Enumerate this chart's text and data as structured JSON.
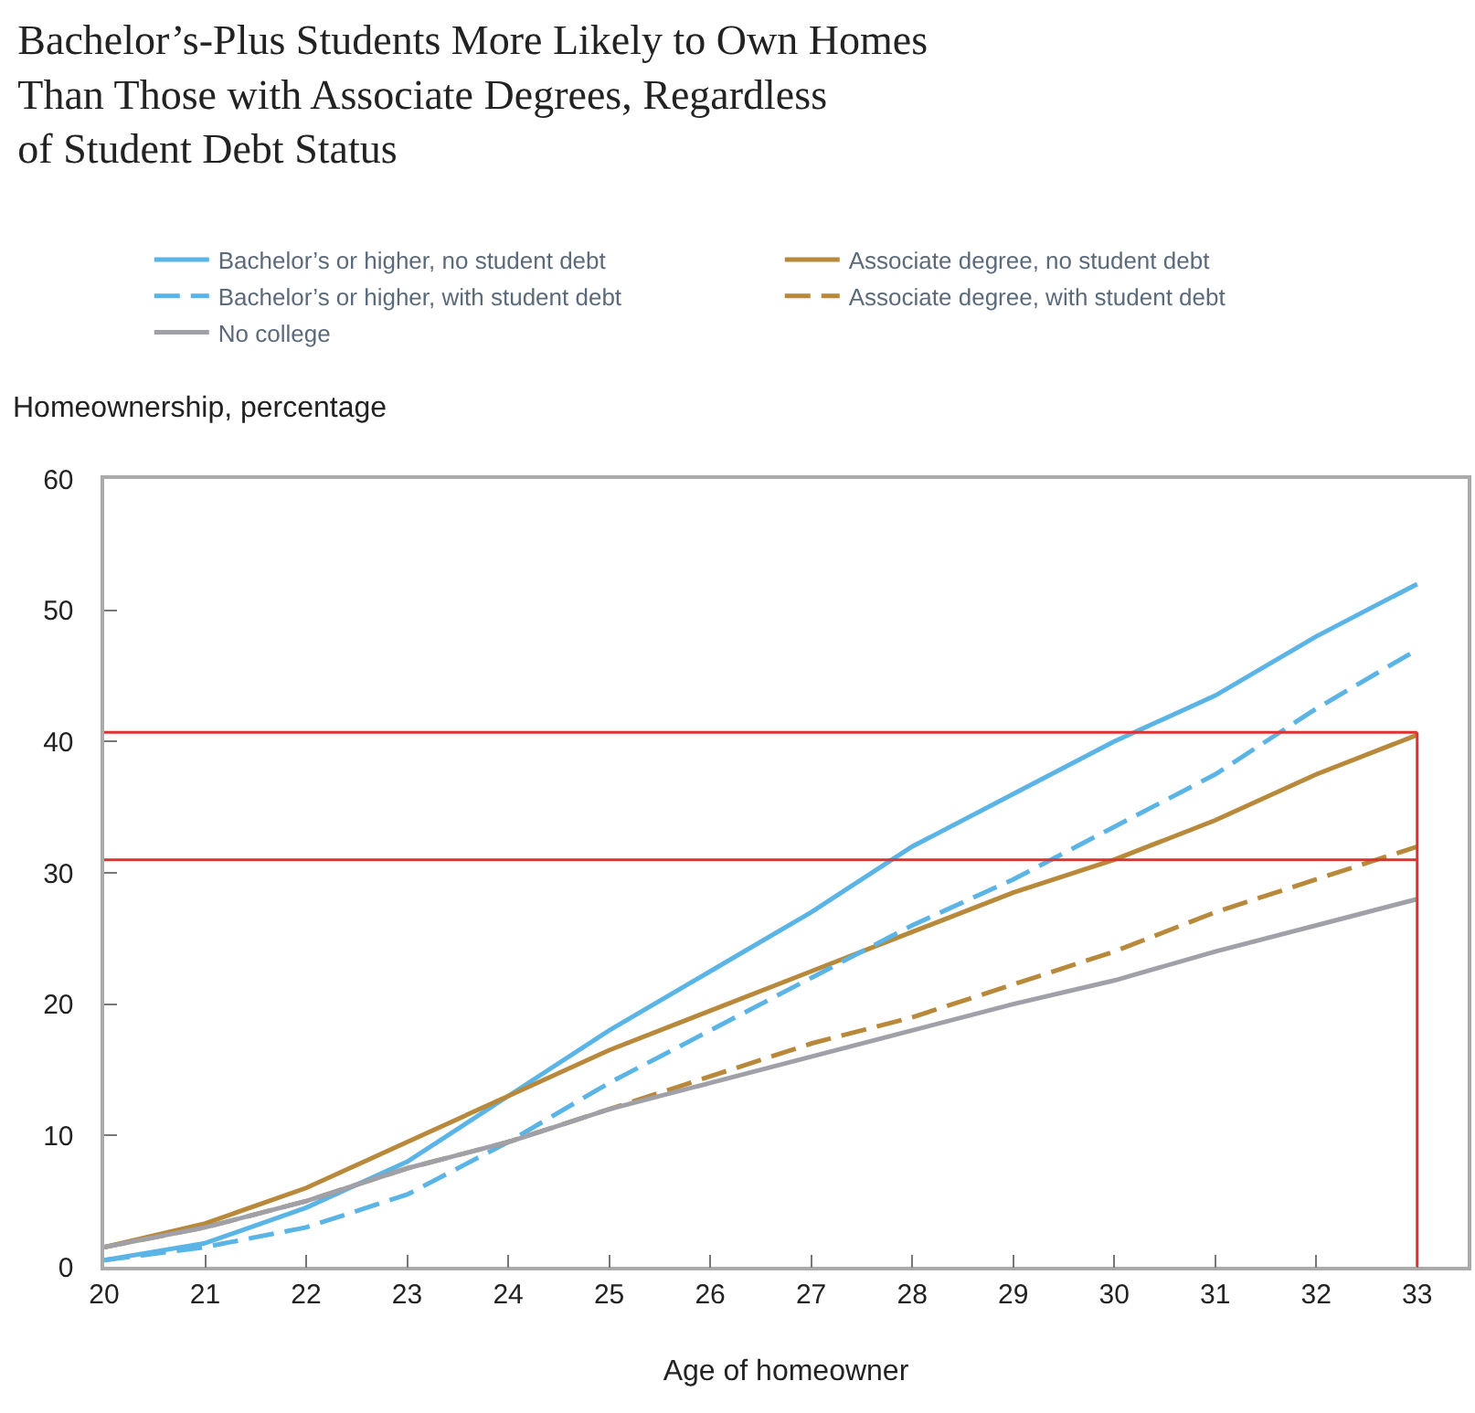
{
  "chart_data": {
    "type": "line",
    "title": "Bachelor’s-Plus Students More Likely to Own Homes\nThan Those with Associate Degrees, Regardless\nof Student Debt Status",
    "xlabel": "Age of homeowner",
    "ylabel": "Homeownership, percentage",
    "x": [
      20,
      21,
      22,
      23,
      24,
      25,
      26,
      27,
      28,
      29,
      30,
      31,
      32,
      33
    ],
    "series": [
      {
        "name": "Bachelor’s or higher, no student debt",
        "color": "#5ab4e5",
        "line_style": "solid",
        "values": [
          0.5,
          1.8,
          4.5,
          8,
          13,
          18,
          22.5,
          27,
          32,
          36,
          40,
          43.5,
          48,
          52
        ]
      },
      {
        "name": "Associate degree, no student debt",
        "color": "#b8893a",
        "line_style": "solid",
        "values": [
          1.5,
          3.3,
          6,
          9.5,
          13,
          16.5,
          19.5,
          22.5,
          25.5,
          28.5,
          31,
          34,
          37.5,
          40.5
        ]
      },
      {
        "name": "Bachelor’s or higher, with student debt",
        "color": "#5ab4e5",
        "line_style": "dashed",
        "values": [
          0.5,
          1.5,
          3,
          5.5,
          9.5,
          14,
          18,
          22,
          26,
          29.5,
          33.5,
          37.5,
          42.5,
          47
        ]
      },
      {
        "name": "Associate degree, with student debt",
        "color": "#b8893a",
        "line_style": "dashed",
        "values": [
          1.5,
          3,
          5,
          7.5,
          9.5,
          12,
          14.5,
          17,
          19,
          21.5,
          24,
          27,
          29.5,
          32
        ]
      },
      {
        "name": "No college",
        "color": "#a0a0a8",
        "line_style": "solid",
        "values": [
          1.5,
          3,
          5,
          7.5,
          9.5,
          12,
          14,
          16,
          18,
          20,
          21.8,
          24,
          26,
          28
        ]
      }
    ],
    "ref_lines": [
      {
        "axis": "y",
        "value": 40.7,
        "color": "#e03030"
      },
      {
        "axis": "y",
        "value": 31,
        "color": "#e03030"
      },
      {
        "axis": "x",
        "value": 33,
        "color": "#e03030"
      }
    ],
    "xlim": [
      20,
      33.5
    ],
    "xticks": [
      20,
      21,
      22,
      23,
      24,
      25,
      26,
      27,
      28,
      29,
      30,
      31,
      32,
      33
    ],
    "ylim": [
      0,
      60
    ],
    "yticks": [
      0,
      10,
      20,
      30,
      40,
      50,
      60
    ],
    "grid": false,
    "legend": "top",
    "marker": "none"
  }
}
